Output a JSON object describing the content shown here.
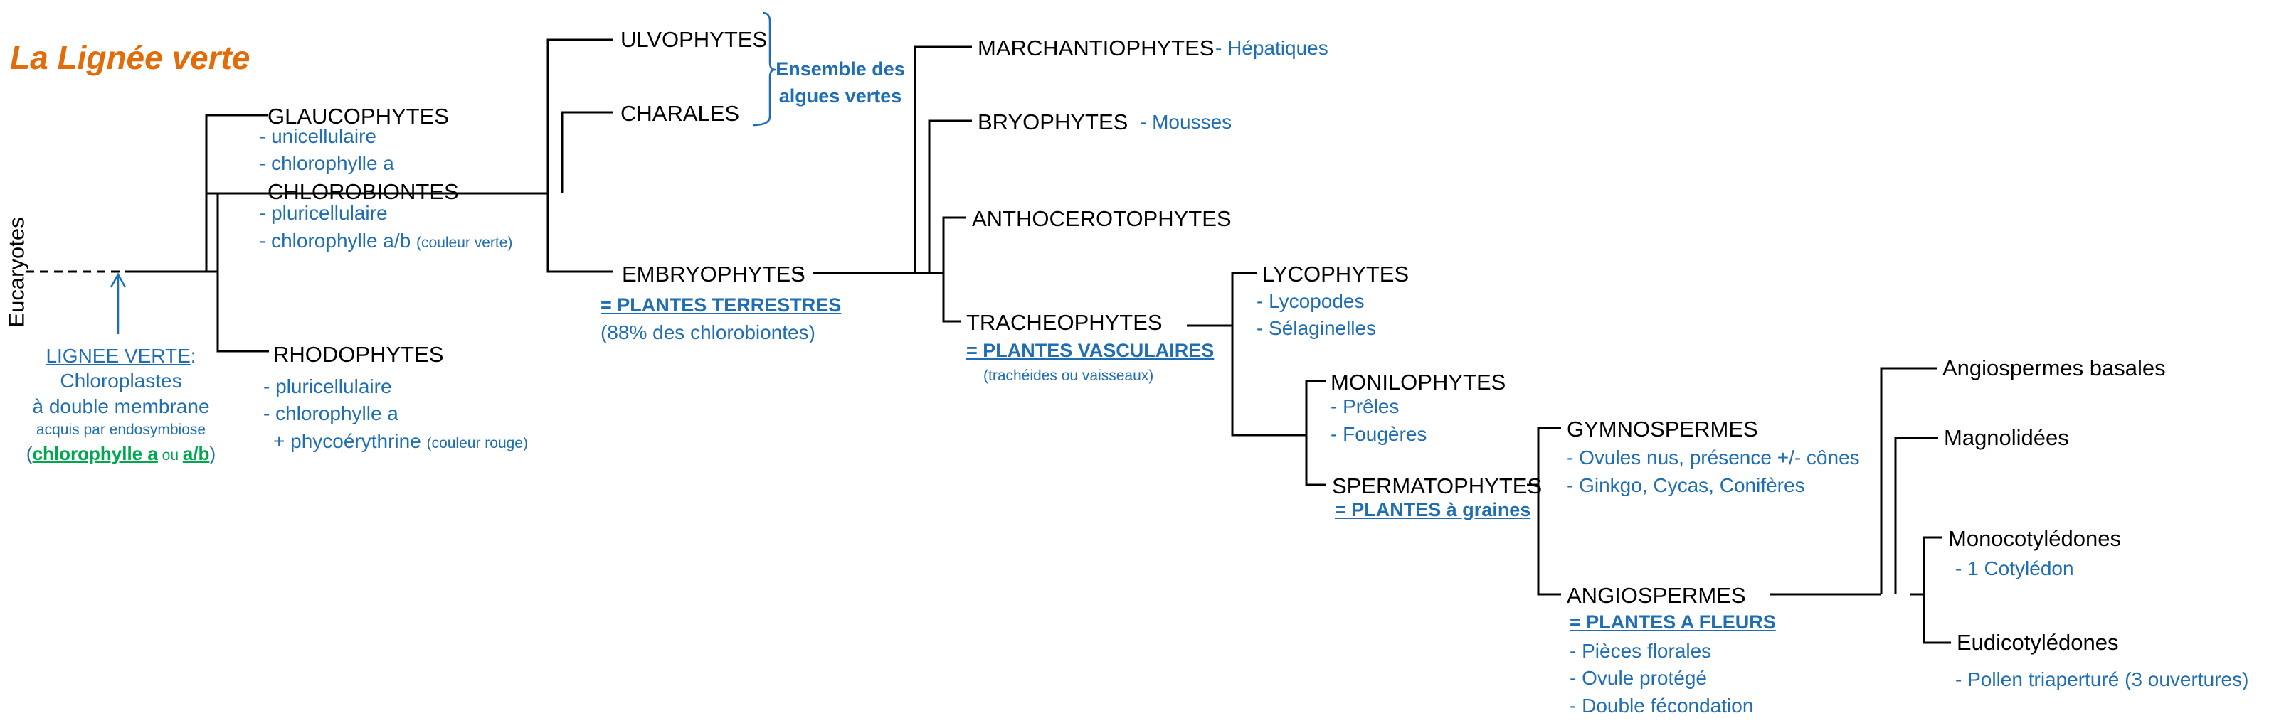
{
  "title": "La Lignée verte",
  "root_label": "Eucaryotes",
  "green_lineage": {
    "label": "LIGNEE VERTE",
    "colon": ":",
    "line1": "Chloroplastes",
    "line2": "à double membrane",
    "line3": "acquis par endosymbiose",
    "open_paren": "(",
    "chl_a": "chlorophylle a",
    "ou": " ou ",
    "chl_ab": "a/b",
    "close_paren": ")"
  },
  "groups": {
    "glaucophytes": {
      "name": "GLAUCOPHYTES",
      "traits": [
        "- unicellulaire",
        "- chlorophylle a"
      ]
    },
    "chlorobiontes": {
      "name": "CHLOROBIONTES",
      "traits": [
        "- pluricellulaire",
        "- chlorophylle a/b"
      ],
      "note": "(couleur verte)"
    },
    "rhodophytes": {
      "name": "RHODOPHYTES",
      "traits": [
        "- pluricellulaire",
        "- chlorophylle a",
        "+ phycoérythrine"
      ],
      "note": "(couleur rouge)"
    },
    "ulvophytes": {
      "name": "ULVOPHYTES"
    },
    "charales": {
      "name": "CHARALES"
    },
    "green_algae": {
      "line1": "Ensemble des",
      "line2": "algues vertes"
    },
    "embryophytes": {
      "name": "EMBRYOPHYTES",
      "tag": "= PLANTES TERRESTRES",
      "note": "(88% des chlorobiontes)"
    },
    "marchantiophytes": {
      "name": "MARCHANTIOPHYTES",
      "common": "- Hépatiques"
    },
    "bryophytes": {
      "name": "BRYOPHYTES",
      "common": "- Mousses"
    },
    "anthocerotophytes": {
      "name": "ANTHOCEROTOPHYTES"
    },
    "tracheophytes": {
      "name": "TRACHEOPHYTES",
      "tag": "= PLANTES VASCULAIRES",
      "note": "(trachéides ou vaisseaux)"
    },
    "lycophytes": {
      "name": "LYCOPHYTES",
      "traits": [
        "- Lycopodes",
        "- Sélaginelles"
      ]
    },
    "monilophytes": {
      "name": "MONILOPHYTES",
      "traits": [
        "- Prêles",
        "- Fougères"
      ]
    },
    "spermatophytes": {
      "name": "SPERMATOPHYTES",
      "tag": "= PLANTES à graines"
    },
    "gymnospermes": {
      "name": "GYMNOSPERMES",
      "traits": [
        "- Ovules nus, présence +/- cônes",
        "- Ginkgo, Cycas, Conifères"
      ]
    },
    "angiospermes": {
      "name": "ANGIOSPERMES",
      "tag": "= PLANTES A FLEURS",
      "traits": [
        "- Pièces florales",
        "- Ovule protégé",
        "- Double fécondation"
      ]
    },
    "angiospermes_basales": {
      "name": "Angiospermes basales"
    },
    "magnoliidees": {
      "name": "Magnolidées"
    },
    "monocotyledones": {
      "name": "Monocotylédones",
      "traits": [
        "- 1 Cotylédon"
      ]
    },
    "eudicotyledones": {
      "name": "Eudicotylédones",
      "traits": [
        "- Pollen triaperturé (3 ouvertures)"
      ]
    }
  },
  "colors": {
    "title": "#e36c0a",
    "desc": "#1f6eb3",
    "chlorophyll": "#00a650",
    "line": "#000000"
  }
}
